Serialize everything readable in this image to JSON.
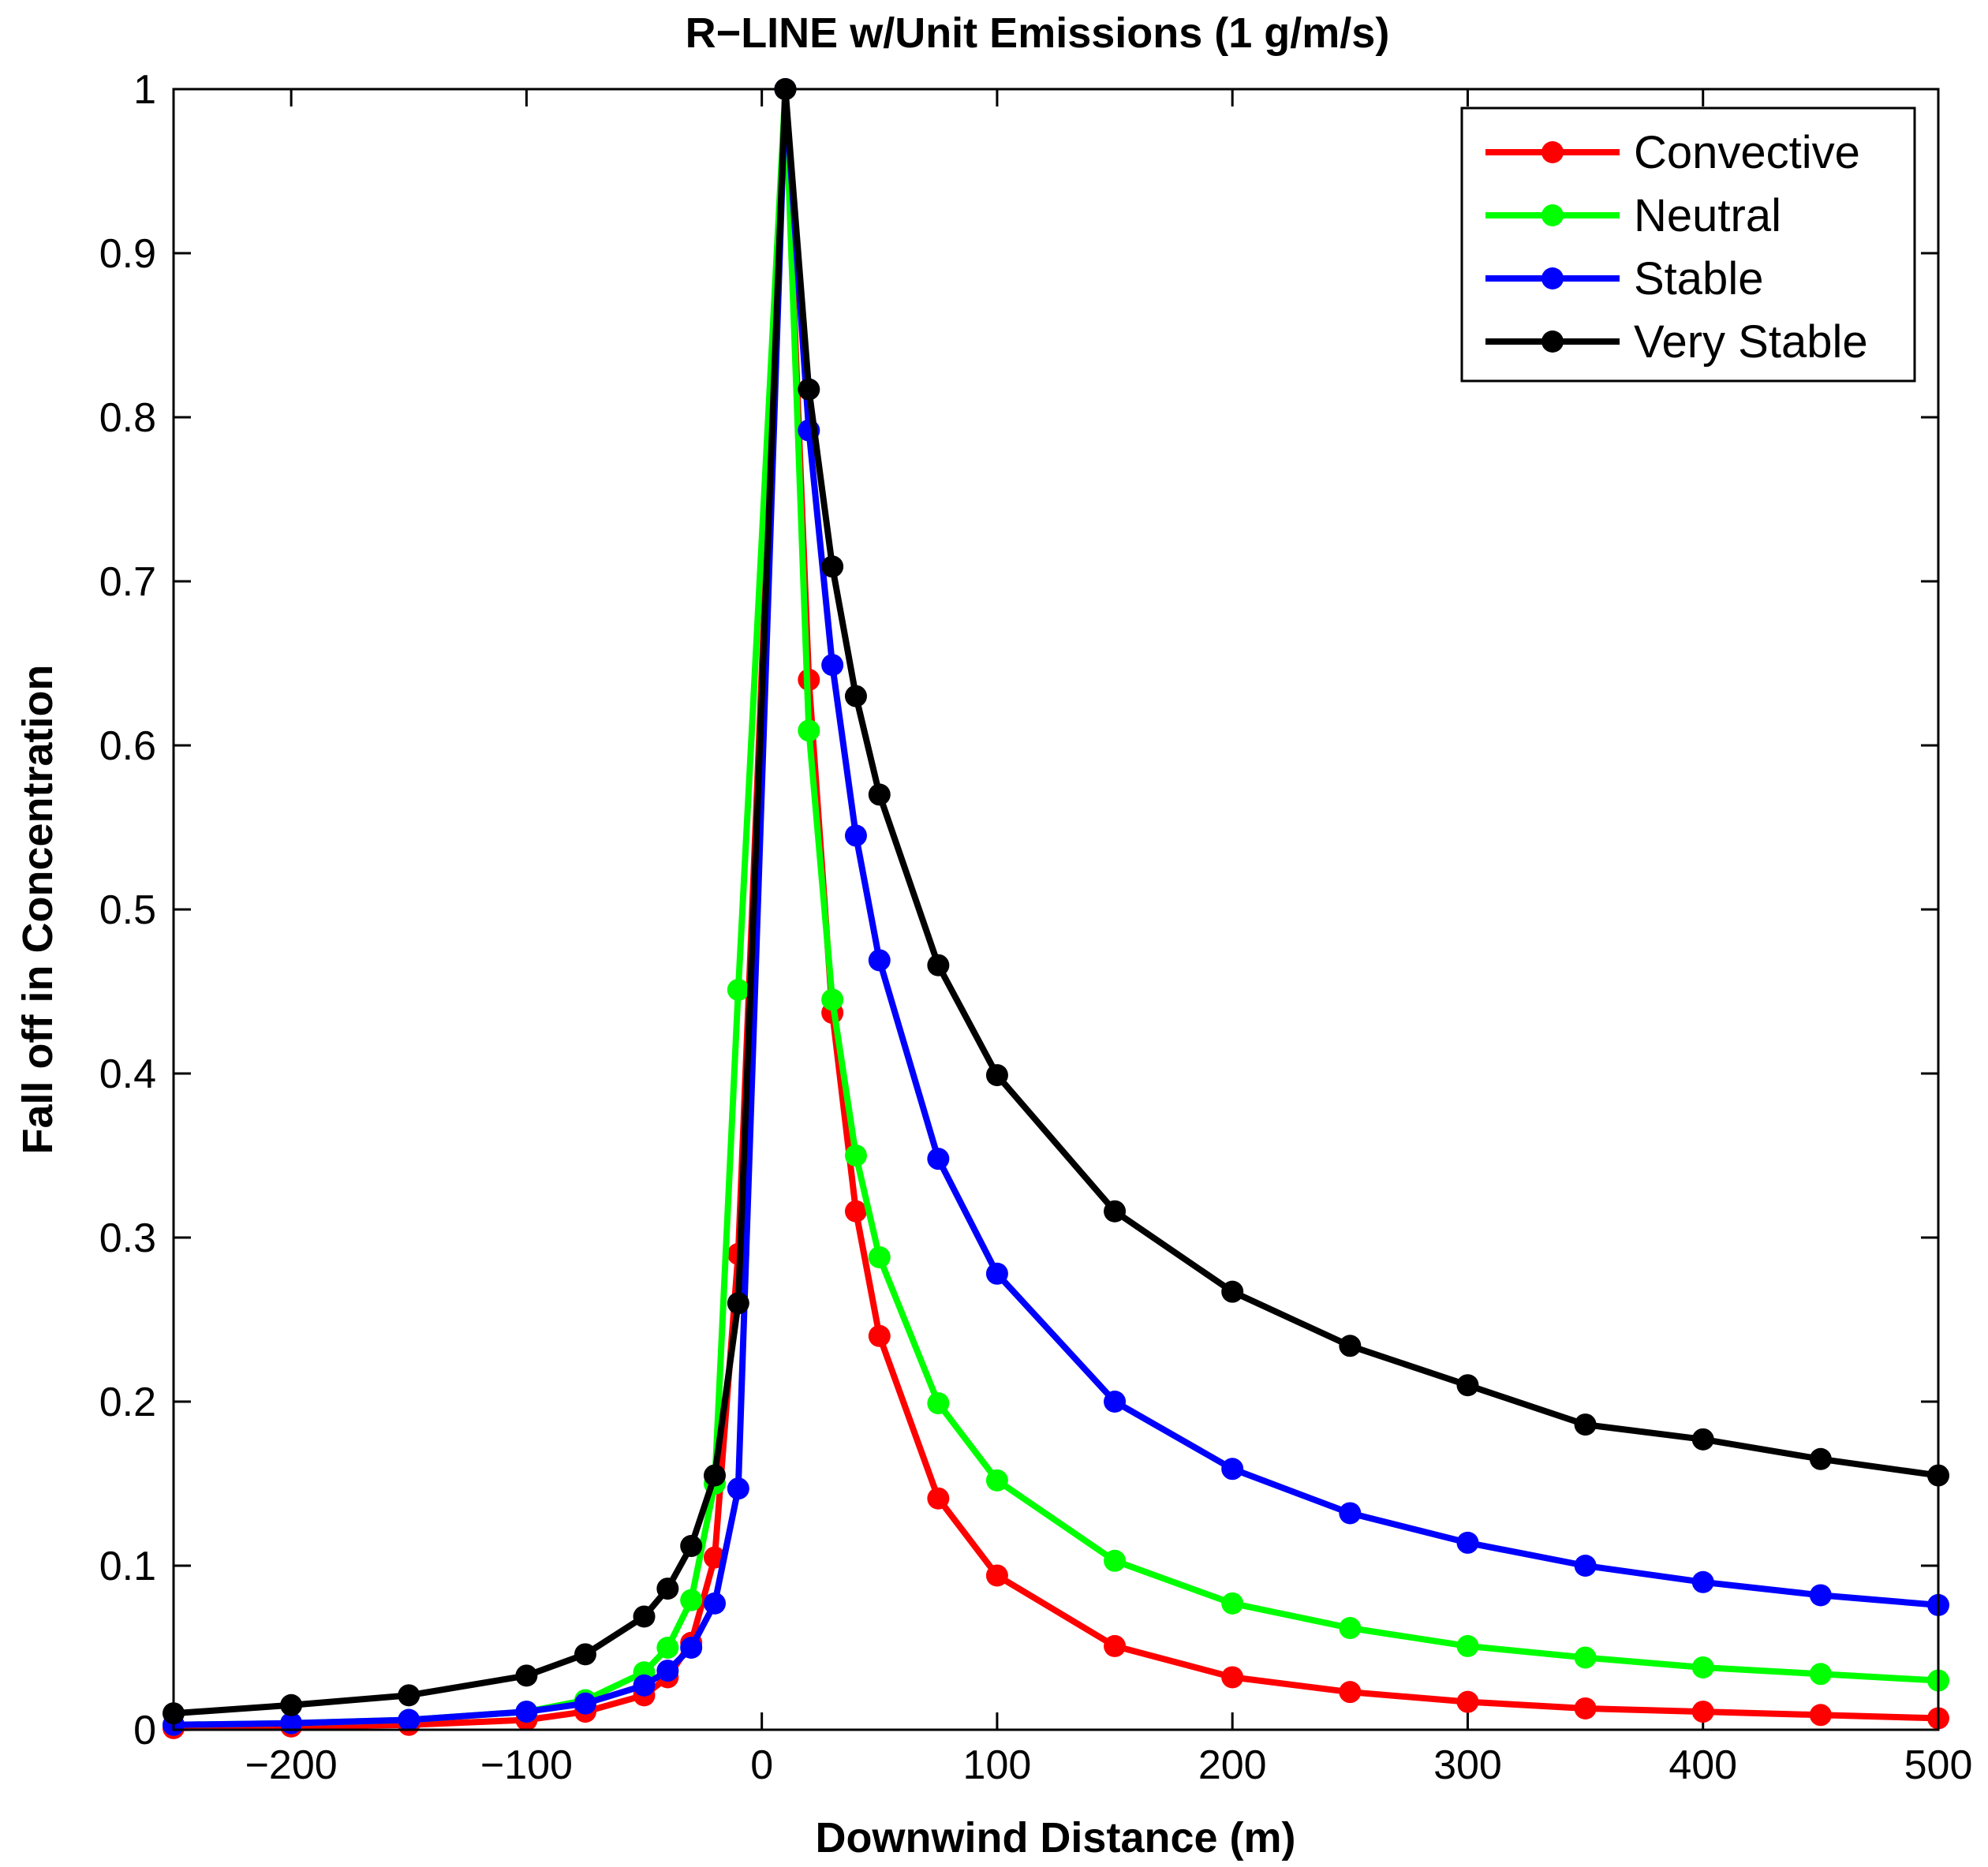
{
  "chart_data": {
    "type": "line",
    "title": "R−LINE w/Unit Emissions (1 g/m/s)",
    "xlabel": "Downwind Distance (m)",
    "ylabel": "Fall off in Concentration",
    "xlim": [
      -250,
      500
    ],
    "ylim": [
      0,
      1
    ],
    "x_ticks": [
      -200,
      -100,
      0,
      100,
      200,
      300,
      400,
      500
    ],
    "x_tick_labels": [
      "−200",
      "−100",
      "0",
      "100",
      "200",
      "300",
      "400",
      "500"
    ],
    "y_ticks": [
      0,
      0.1,
      0.2,
      0.3,
      0.4,
      0.5,
      0.6,
      0.7,
      0.8,
      0.9,
      1
    ],
    "y_tick_labels": [
      "0",
      "0.1",
      "0.2",
      "0.3",
      "0.4",
      "0.5",
      "0.6",
      "0.7",
      "0.8",
      "0.9",
      "1"
    ],
    "legend_position": "top-right",
    "grid": false,
    "series": [
      {
        "name": "Convective",
        "color": "#ff0000",
        "x": [
          -250,
          -200,
          -150,
          -100,
          -75,
          -50,
          -40,
          -30,
          -20,
          -10,
          10,
          20,
          30,
          40,
          50,
          75,
          100,
          150,
          200,
          250,
          300,
          350,
          400,
          450,
          500
        ],
        "y": [
          0.001,
          0.002,
          0.003,
          0.006,
          0.011,
          0.021,
          0.032,
          0.053,
          0.105,
          0.29,
          1.0,
          0.64,
          0.437,
          0.316,
          0.24,
          0.141,
          0.094,
          0.051,
          0.032,
          0.023,
          0.017,
          0.013,
          0.011,
          0.009,
          0.007
        ]
      },
      {
        "name": "Neutral",
        "color": "#00ff00",
        "x": [
          -250,
          -200,
          -150,
          -100,
          -75,
          -50,
          -40,
          -30,
          -20,
          -10,
          10,
          20,
          30,
          40,
          50,
          75,
          100,
          150,
          200,
          250,
          300,
          350,
          400,
          450,
          500
        ],
        "y": [
          0.003,
          0.004,
          0.006,
          0.011,
          0.018,
          0.035,
          0.05,
          0.079,
          0.15,
          0.451,
          1.0,
          0.609,
          0.445,
          0.35,
          0.288,
          0.199,
          0.152,
          0.103,
          0.077,
          0.062,
          0.051,
          0.044,
          0.038,
          0.034,
          0.03
        ]
      },
      {
        "name": "Stable",
        "color": "#0000ff",
        "x": [
          -250,
          -200,
          -150,
          -100,
          -75,
          -50,
          -40,
          -30,
          -20,
          -10,
          10,
          20,
          30,
          40,
          50,
          75,
          100,
          150,
          200,
          250,
          300,
          350,
          400,
          450,
          500
        ],
        "y": [
          0.003,
          0.004,
          0.006,
          0.011,
          0.016,
          0.027,
          0.036,
          0.05,
          0.077,
          0.147,
          1.0,
          0.792,
          0.649,
          0.545,
          0.469,
          0.348,
          0.278,
          0.2,
          0.159,
          0.132,
          0.114,
          0.1,
          0.09,
          0.082,
          0.076
        ]
      },
      {
        "name": "Very Stable",
        "color": "#000000",
        "x": [
          -250,
          -200,
          -150,
          -100,
          -75,
          -50,
          -40,
          -30,
          -20,
          -10,
          10,
          20,
          30,
          40,
          50,
          75,
          100,
          150,
          200,
          250,
          300,
          350,
          400,
          450,
          500
        ],
        "y": [
          0.01,
          0.015,
          0.021,
          0.033,
          0.046,
          0.069,
          0.086,
          0.112,
          0.155,
          0.26,
          1.0,
          0.817,
          0.709,
          0.63,
          0.57,
          0.466,
          0.399,
          0.316,
          0.267,
          0.234,
          0.21,
          0.186,
          0.177,
          0.165,
          0.155
        ]
      }
    ]
  }
}
